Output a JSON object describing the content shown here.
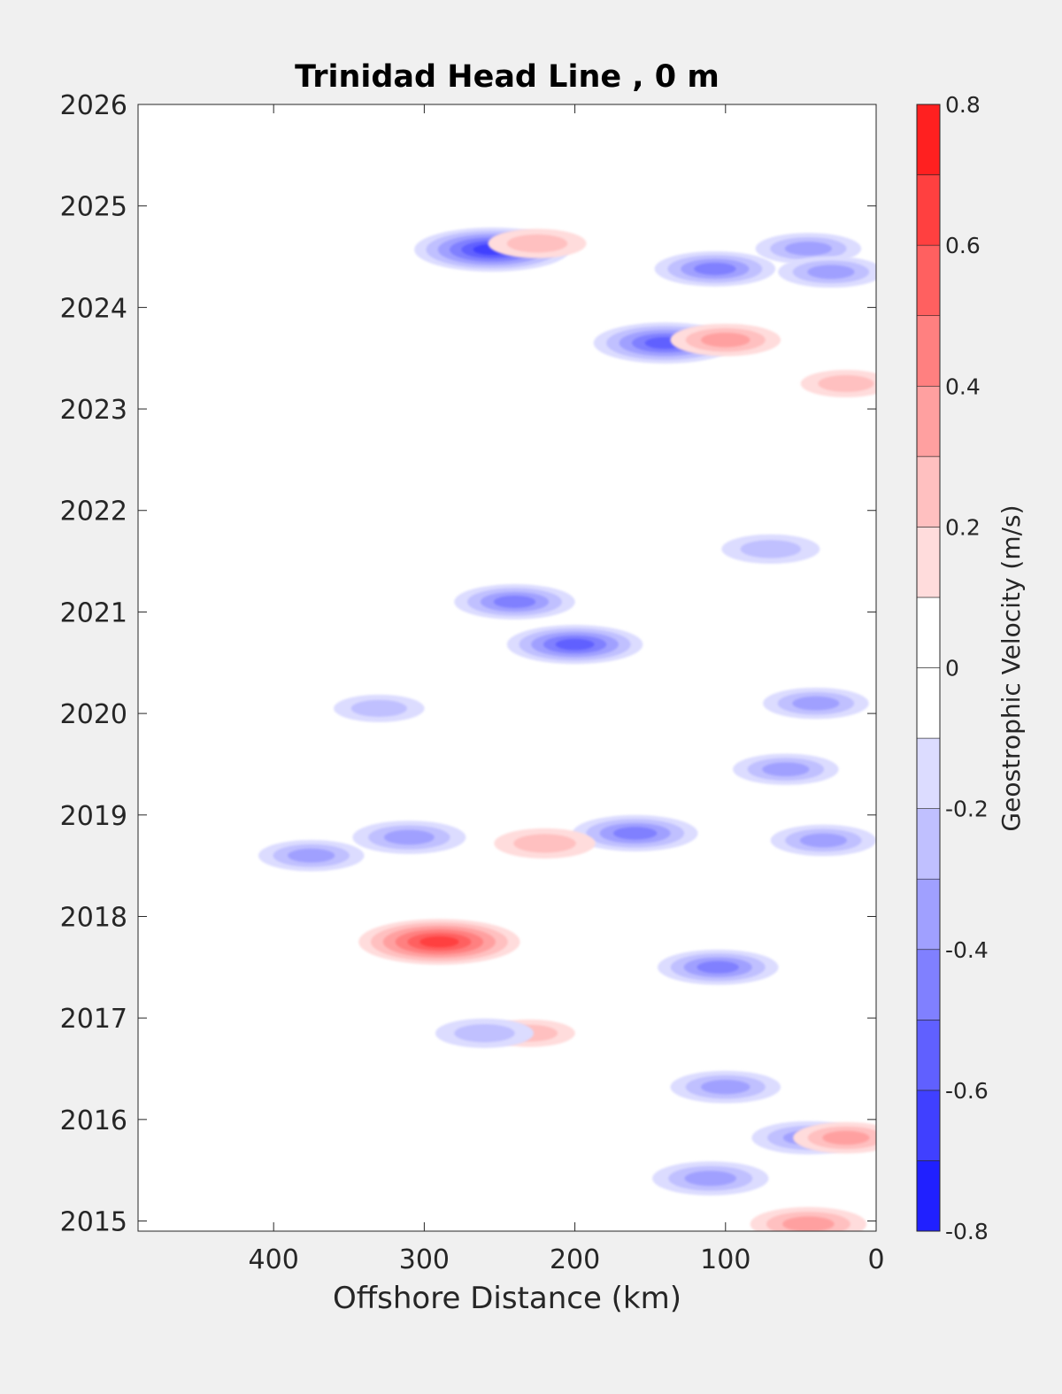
{
  "chart_data": {
    "type": "heatmap",
    "title": "Trinidad Head Line , 0 m",
    "xlabel": "Offshore Distance (km)",
    "ylabel": "",
    "x_axis": {
      "range": [
        490,
        0
      ],
      "reversed": true,
      "ticks": [
        400,
        300,
        200,
        100,
        0
      ],
      "tick_labels": [
        "400",
        "300",
        "200",
        "100",
        "0"
      ]
    },
    "y_axis": {
      "range": [
        2014.9,
        2026
      ],
      "ticks": [
        2015,
        2016,
        2017,
        2018,
        2019,
        2020,
        2021,
        2022,
        2023,
        2024,
        2025,
        2026
      ],
      "tick_labels": [
        "2015",
        "2016",
        "2017",
        "2018",
        "2019",
        "2020",
        "2021",
        "2022",
        "2023",
        "2024",
        "2025",
        "2026"
      ]
    },
    "grid": false,
    "colorbar": {
      "label": "Geostrophic Velocity (m/s)",
      "range": [
        -0.8,
        0.8
      ],
      "levels": [
        -0.8,
        -0.7,
        -0.6,
        -0.5,
        -0.4,
        -0.3,
        -0.2,
        -0.1,
        0.1,
        0.2,
        0.3,
        0.4,
        0.5,
        0.6,
        0.7,
        0.8
      ],
      "colors": [
        "#0000ff",
        "#2020ff",
        "#4040ff",
        "#6060ff",
        "#8080ff",
        "#a0a0ff",
        "#c0c0ff",
        "#dcdcff",
        "#ffffff",
        "#ffdcdc",
        "#ffc0c0",
        "#ffa0a0",
        "#ff8080",
        "#ff6060",
        "#ff4040",
        "#ff2020",
        "#ff0000"
      ],
      "ticks": [
        0.8,
        0.6,
        0.4,
        0.2,
        0,
        -0.2,
        -0.4,
        -0.6,
        -0.8
      ],
      "tick_labels": [
        "0.8",
        "0.6",
        "0.4",
        "0.2",
        "0",
        "-0.2",
        "-0.4",
        "-0.6",
        "-0.8"
      ]
    },
    "features": [
      {
        "x": 255,
        "y": 2024.57,
        "value": -0.68
      },
      {
        "x": 225,
        "y": 2024.63,
        "value": 0.3
      },
      {
        "x": 140,
        "y": 2023.65,
        "value": -0.6
      },
      {
        "x": 100,
        "y": 2023.68,
        "value": 0.38
      },
      {
        "x": 107,
        "y": 2024.38,
        "value": -0.45
      },
      {
        "x": 45,
        "y": 2024.58,
        "value": -0.35
      },
      {
        "x": 30,
        "y": 2024.35,
        "value": -0.35
      },
      {
        "x": 240,
        "y": 2021.1,
        "value": -0.45
      },
      {
        "x": 200,
        "y": 2020.68,
        "value": -0.55
      },
      {
        "x": 70,
        "y": 2021.62,
        "value": -0.3
      },
      {
        "x": 290,
        "y": 2017.75,
        "value": 0.72
      },
      {
        "x": 105,
        "y": 2017.5,
        "value": -0.45
      },
      {
        "x": 160,
        "y": 2018.82,
        "value": -0.48
      },
      {
        "x": 220,
        "y": 2018.72,
        "value": 0.32
      },
      {
        "x": 310,
        "y": 2018.78,
        "value": -0.4
      },
      {
        "x": 375,
        "y": 2018.6,
        "value": -0.35
      },
      {
        "x": 35,
        "y": 2018.75,
        "value": -0.35
      },
      {
        "x": 45,
        "y": 2014.97,
        "value": 0.42
      },
      {
        "x": 110,
        "y": 2015.42,
        "value": -0.42
      },
      {
        "x": 45,
        "y": 2015.82,
        "value": -0.4
      },
      {
        "x": 20,
        "y": 2015.82,
        "value": 0.35
      },
      {
        "x": 100,
        "y": 2016.32,
        "value": -0.38
      },
      {
        "x": 230,
        "y": 2016.85,
        "value": 0.25
      },
      {
        "x": 260,
        "y": 2016.85,
        "value": -0.3
      },
      {
        "x": 40,
        "y": 2020.1,
        "value": -0.35
      },
      {
        "x": 330,
        "y": 2020.05,
        "value": -0.25
      },
      {
        "x": 60,
        "y": 2019.45,
        "value": -0.35
      },
      {
        "x": 20,
        "y": 2023.25,
        "value": 0.25
      }
    ]
  }
}
